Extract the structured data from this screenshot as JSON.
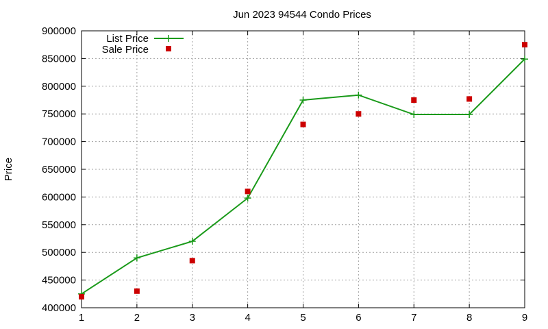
{
  "chart_data": {
    "type": "line",
    "title": "Jun 2023 94544 Condo Prices",
    "xlabel": "",
    "ylabel": "Price",
    "x": [
      1,
      2,
      3,
      4,
      5,
      6,
      7,
      8,
      9
    ],
    "xlim": [
      1,
      9
    ],
    "ylim": [
      400000,
      900000
    ],
    "yticks": [
      400000,
      450000,
      500000,
      550000,
      600000,
      650000,
      700000,
      750000,
      800000,
      850000,
      900000
    ],
    "grid": true,
    "legend_position": "top-left",
    "series": [
      {
        "name": "List Price",
        "style": "line-with-plus-markers",
        "color": "#1a9a1a",
        "values": [
          425000,
          490000,
          520000,
          598000,
          775000,
          784000,
          749000,
          749000,
          849000
        ]
      },
      {
        "name": "Sale Price",
        "style": "square-markers",
        "color": "#cc0000",
        "values": [
          420000,
          430000,
          485000,
          610000,
          731000,
          750000,
          775000,
          777000,
          875000
        ]
      }
    ]
  }
}
